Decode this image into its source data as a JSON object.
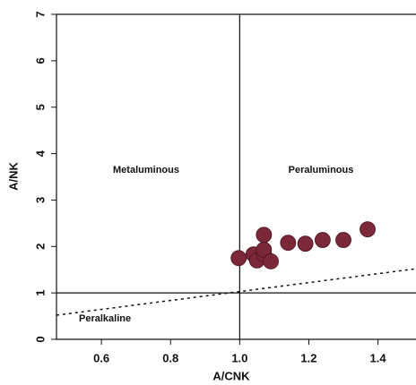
{
  "chart_data": {
    "type": "scatter",
    "x_label": "A/CNK",
    "y_label": "A/NK",
    "x": [
      0.997,
      1.04,
      1.05,
      1.07,
      1.07,
      1.07,
      1.09,
      1.14,
      1.19,
      1.24,
      1.3,
      1.37
    ],
    "values": [
      1.75,
      1.83,
      1.7,
      1.83,
      1.93,
      2.25,
      1.68,
      2.08,
      2.06,
      2.14,
      2.14,
      2.37
    ],
    "color": "#7b2838",
    "xlim": [
      0.47,
      1.51
    ],
    "ylim": [
      0,
      7
    ],
    "xticks": [
      0.6,
      0.8,
      {
        "value": 1,
        "label": "1.0"
      },
      1.2,
      1.4
    ],
    "yticks": [
      0,
      1,
      2,
      3,
      4,
      5,
      6,
      7
    ],
    "reference_lines": {
      "x": 1,
      "y": 1
    },
    "boundary_line": {
      "x": [
        0.47,
        1.51
      ],
      "y": [
        0.52,
        1.52
      ]
    },
    "annotations": [
      "Metaluminous",
      "Peraluminous",
      "Peralkaline"
    ]
  }
}
